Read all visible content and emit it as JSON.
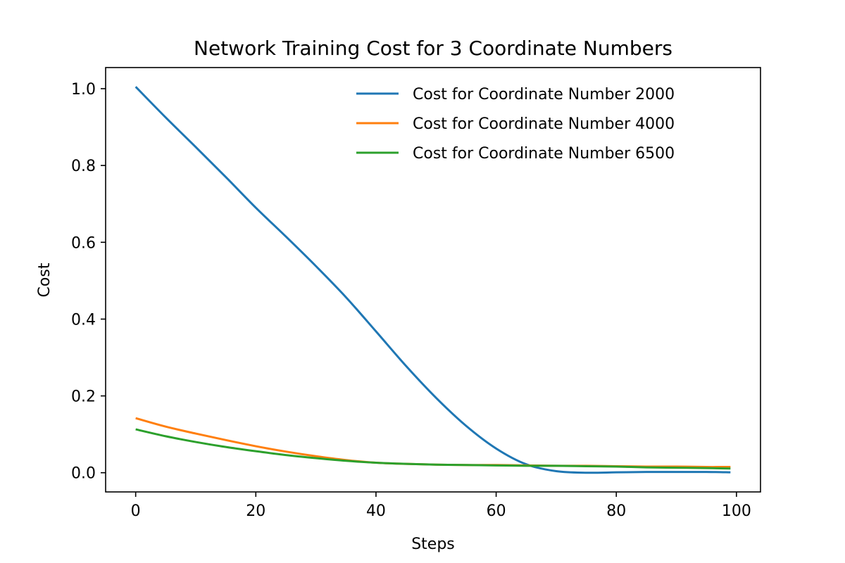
{
  "chart_data": {
    "type": "line",
    "title": "Network Training Cost for 3 Coordinate Numbers",
    "xlabel": "Steps",
    "ylabel": "Cost",
    "xlim": [
      -5,
      104
    ],
    "ylim": [
      -0.05,
      1.055
    ],
    "xticks": [
      0,
      20,
      40,
      60,
      80,
      100
    ],
    "xtick_labels": [
      "0",
      "20",
      "40",
      "60",
      "80",
      "100"
    ],
    "yticks": [
      0.0,
      0.2,
      0.4,
      0.6,
      0.8,
      1.0
    ],
    "ytick_labels": [
      "0.0",
      "0.2",
      "0.4",
      "0.6",
      "0.8",
      "1.0"
    ],
    "grid": false,
    "legend": "top-right",
    "series": [
      {
        "name": "Cost for Coordinate Number 2000",
        "color": "#1f77b4",
        "x": [
          0,
          5,
          10,
          15,
          20,
          25,
          30,
          35,
          40,
          45,
          50,
          55,
          60,
          65,
          70,
          75,
          80,
          85,
          90,
          95,
          99
        ],
        "y": [
          1.005,
          0.925,
          0.848,
          0.77,
          0.69,
          0.615,
          0.538,
          0.457,
          0.368,
          0.278,
          0.195,
          0.122,
          0.063,
          0.022,
          0.004,
          0.0,
          0.001,
          0.002,
          0.002,
          0.002,
          0.001
        ]
      },
      {
        "name": "Cost for Coordinate Number 4000",
        "color": "#ff7f0e",
        "x": [
          0,
          5,
          10,
          15,
          20,
          25,
          30,
          35,
          40,
          45,
          50,
          55,
          60,
          65,
          70,
          75,
          80,
          85,
          90,
          95,
          99
        ],
        "y": [
          0.142,
          0.12,
          0.102,
          0.085,
          0.069,
          0.055,
          0.043,
          0.033,
          0.026,
          0.023,
          0.021,
          0.02,
          0.02,
          0.019,
          0.018,
          0.018,
          0.017,
          0.016,
          0.016,
          0.015,
          0.015
        ]
      },
      {
        "name": "Cost for Coordinate Number 6500",
        "color": "#2ca02c",
        "x": [
          0,
          5,
          10,
          15,
          20,
          25,
          30,
          35,
          40,
          45,
          50,
          55,
          60,
          65,
          70,
          75,
          80,
          85,
          90,
          95,
          99
        ],
        "y": [
          0.113,
          0.095,
          0.08,
          0.067,
          0.056,
          0.046,
          0.038,
          0.031,
          0.026,
          0.023,
          0.021,
          0.02,
          0.019,
          0.018,
          0.018,
          0.017,
          0.016,
          0.014,
          0.013,
          0.012,
          0.011
        ]
      }
    ]
  }
}
